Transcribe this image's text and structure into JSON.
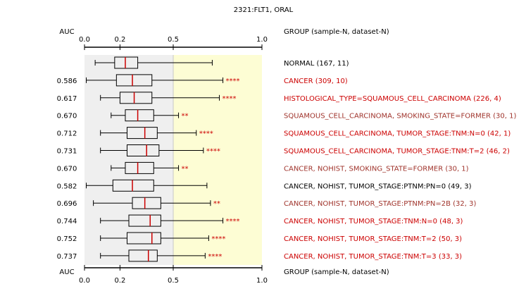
{
  "chart_data": {
    "type": "boxplot",
    "title": "2321:FLT1, ORAL",
    "left_header": "AUC",
    "right_header": "GROUP (sample-N, dataset-N)",
    "axis_ticks": [
      {
        "value": 0.0,
        "label": "0.0"
      },
      {
        "value": 0.2,
        "label": "0.2"
      },
      {
        "value": 0.5,
        "label": "0.5"
      },
      {
        "value": 1.0,
        "label": "1.0"
      }
    ],
    "ref_line": 0.5,
    "colors": {
      "normal_band": "#efefef",
      "cancer_band": "#fdfdd4",
      "median": "#cc0000",
      "stars": "#cc0000",
      "label_dark": "#000000",
      "label_red": "#cc0000",
      "label_brown": "#a0342c"
    },
    "rows": [
      {
        "auc": "",
        "label": "NORMAL (167, 11)",
        "label_color": "#000000",
        "stars": "",
        "whisker_low": 0.06,
        "q1": 0.17,
        "median": 0.23,
        "q3": 0.3,
        "whisker_high": 0.72
      },
      {
        "auc": "0.586",
        "label": "CANCER (309, 10)",
        "label_color": "#cc0000",
        "stars": "****",
        "whisker_low": 0.01,
        "q1": 0.18,
        "median": 0.27,
        "q3": 0.38,
        "whisker_high": 0.78
      },
      {
        "auc": "0.617",
        "label": "HISTOLOGICAL_TYPE=SQUAMOUS_CELL_CARCINOMA (226, 4)",
        "label_color": "#cc0000",
        "stars": "****",
        "whisker_low": 0.09,
        "q1": 0.2,
        "median": 0.28,
        "q3": 0.38,
        "whisker_high": 0.76
      },
      {
        "auc": "0.670",
        "label": "SQUAMOUS_CELL_CARCINOMA, SMOKING_STATE=FORMER (30, 1)",
        "label_color": "#a0342c",
        "stars": "**",
        "whisker_low": 0.15,
        "q1": 0.23,
        "median": 0.3,
        "q3": 0.39,
        "whisker_high": 0.53
      },
      {
        "auc": "0.712",
        "label": "SQUAMOUS_CELL_CARCINOMA, TUMOR_STAGE:TNM:N=0 (42, 1)",
        "label_color": "#cc0000",
        "stars": "****",
        "whisker_low": 0.09,
        "q1": 0.24,
        "median": 0.34,
        "q3": 0.41,
        "whisker_high": 0.63
      },
      {
        "auc": "0.731",
        "label": "SQUAMOUS_CELL_CARCINOMA, TUMOR_STAGE:TNM:T=2 (46, 2)",
        "label_color": "#cc0000",
        "stars": "****",
        "whisker_low": 0.09,
        "q1": 0.24,
        "median": 0.35,
        "q3": 0.42,
        "whisker_high": 0.67
      },
      {
        "auc": "0.670",
        "label": "CANCER, NOHIST, SMOKING_STATE=FORMER (30, 1)",
        "label_color": "#a0342c",
        "stars": "**",
        "whisker_low": 0.15,
        "q1": 0.23,
        "median": 0.3,
        "q3": 0.39,
        "whisker_high": 0.53
      },
      {
        "auc": "0.582",
        "label": "CANCER, NOHIST, TUMOR_STAGE:PTNM:PN=0 (49, 3)",
        "label_color": "#000000",
        "stars": "",
        "whisker_low": 0.01,
        "q1": 0.16,
        "median": 0.27,
        "q3": 0.39,
        "whisker_high": 0.69
      },
      {
        "auc": "0.696",
        "label": "CANCER, NOHIST, TUMOR_STAGE:PTNM:PN=2B (32, 3)",
        "label_color": "#a0342c",
        "stars": "**",
        "whisker_low": 0.05,
        "q1": 0.27,
        "median": 0.34,
        "q3": 0.43,
        "whisker_high": 0.71
      },
      {
        "auc": "0.744",
        "label": "CANCER, NOHIST, TUMOR_STAGE:TNM:N=0 (48, 3)",
        "label_color": "#cc0000",
        "stars": "****",
        "whisker_low": 0.09,
        "q1": 0.25,
        "median": 0.37,
        "q3": 0.43,
        "whisker_high": 0.78
      },
      {
        "auc": "0.752",
        "label": "CANCER, NOHIST, TUMOR_STAGE:TNM:T=2 (50, 3)",
        "label_color": "#cc0000",
        "stars": "****",
        "whisker_low": 0.09,
        "q1": 0.24,
        "median": 0.38,
        "q3": 0.43,
        "whisker_high": 0.7
      },
      {
        "auc": "0.737",
        "label": "CANCER, NOHIST, TUMOR_STAGE:TNM:T=3 (33, 3)",
        "label_color": "#cc0000",
        "stars": "****",
        "whisker_low": 0.09,
        "q1": 0.25,
        "median": 0.36,
        "q3": 0.41,
        "whisker_high": 0.68
      }
    ]
  }
}
